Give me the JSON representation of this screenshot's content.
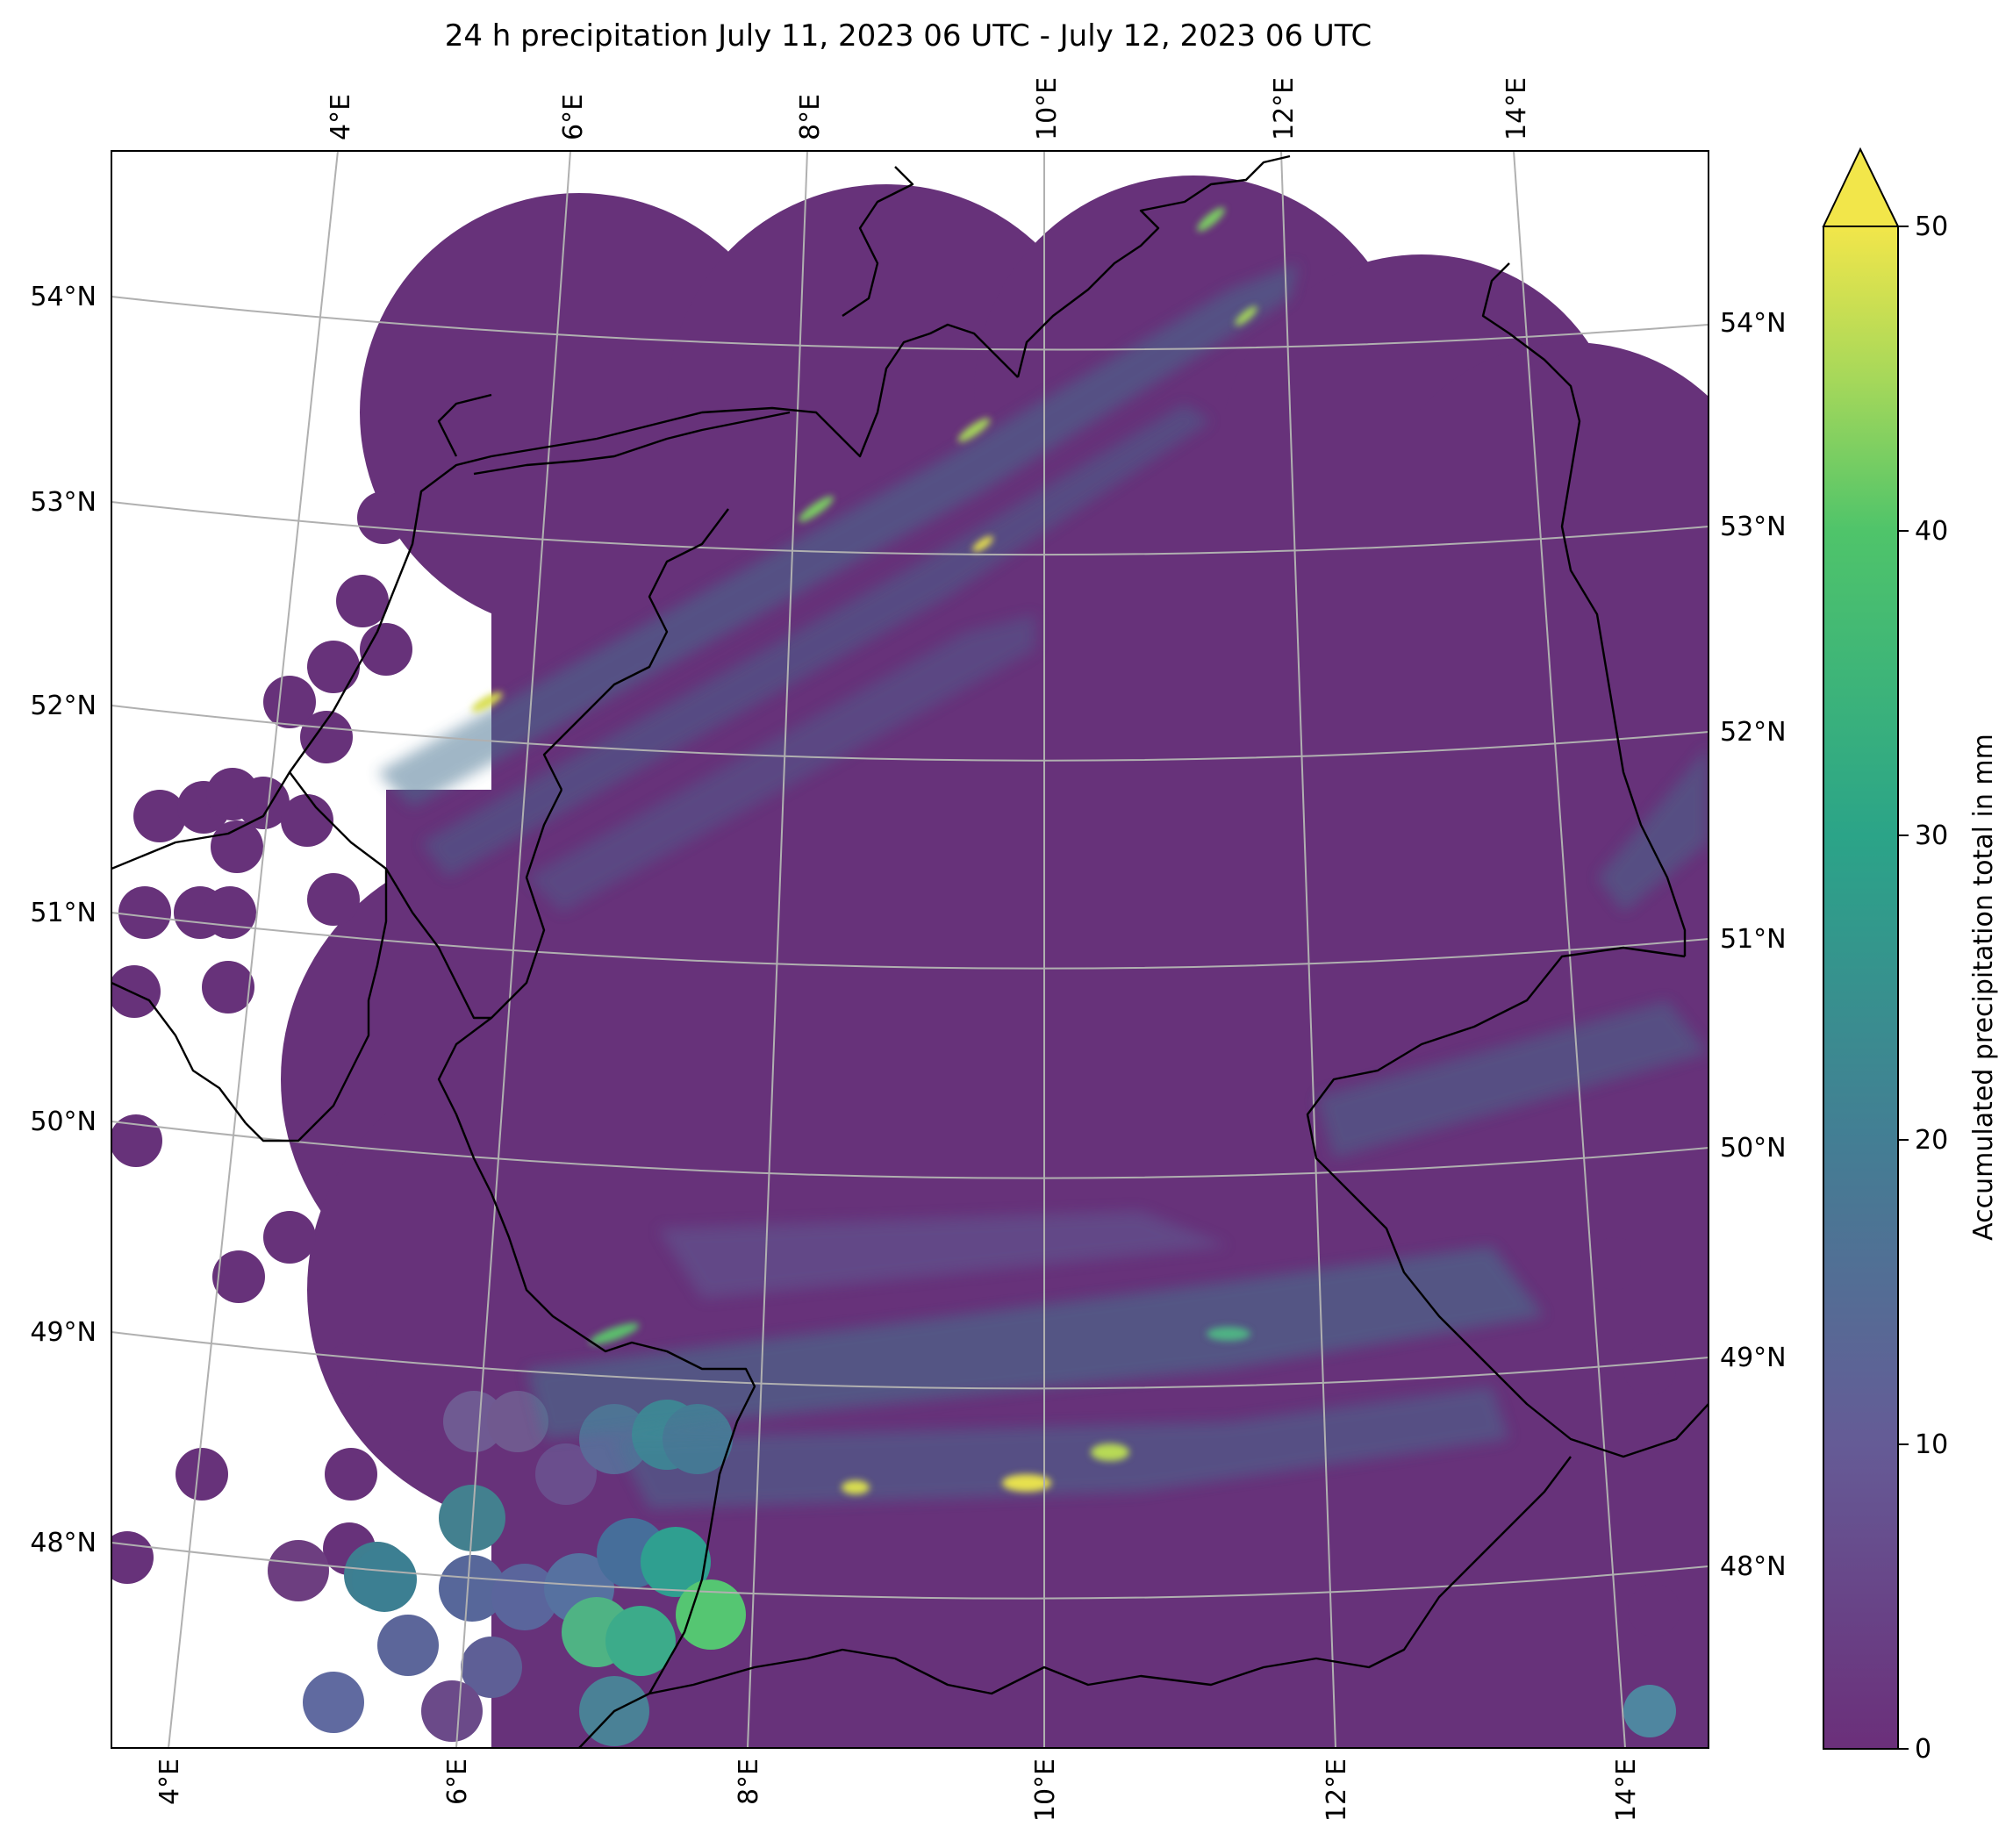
{
  "title": "24 h precipitation July 11, 2023 06 UTC - July 12, 2023 06 UTC",
  "map": {
    "lon_labels": [
      "4°E",
      "6°E",
      "8°E",
      "10°E",
      "12°E",
      "14°E"
    ],
    "lat_labels": [
      "48°N",
      "49°N",
      "50°N",
      "51°N",
      "52°N",
      "53°N",
      "54°N"
    ],
    "colormap": "viridis",
    "background_color": "#67327a"
  },
  "colorbar": {
    "label": "Accumulated precipitation total in mm",
    "ticks": [
      "0",
      "10",
      "20",
      "30",
      "40",
      "50"
    ],
    "vmin": 0,
    "vmax": 50,
    "extend": "max",
    "colors": [
      "#6b2f7a",
      "#655b96",
      "#437e94",
      "#2ba488",
      "#4fc46a",
      "#a6d85a",
      "#f2e64a"
    ]
  }
}
